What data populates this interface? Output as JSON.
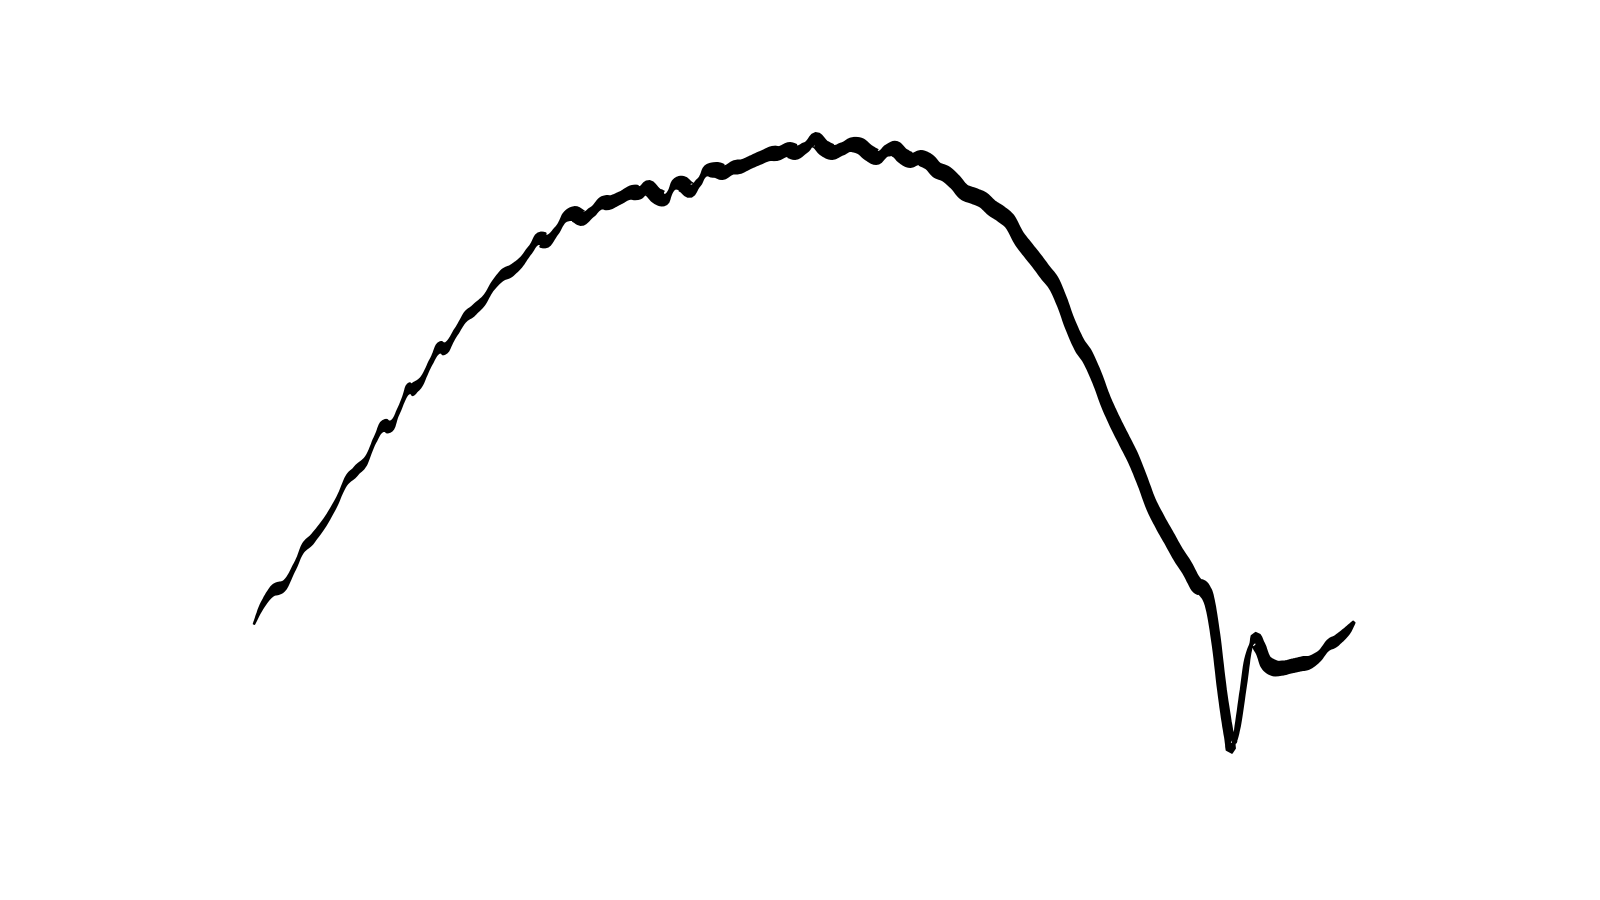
{
  "figure": {
    "background_color": "#ffffff",
    "stroke_color": "#000000",
    "stroke_style": "calligraphic-wavy-ribbon",
    "shape": "arched wavy line ending in a sharp dip and small rise"
  }
}
